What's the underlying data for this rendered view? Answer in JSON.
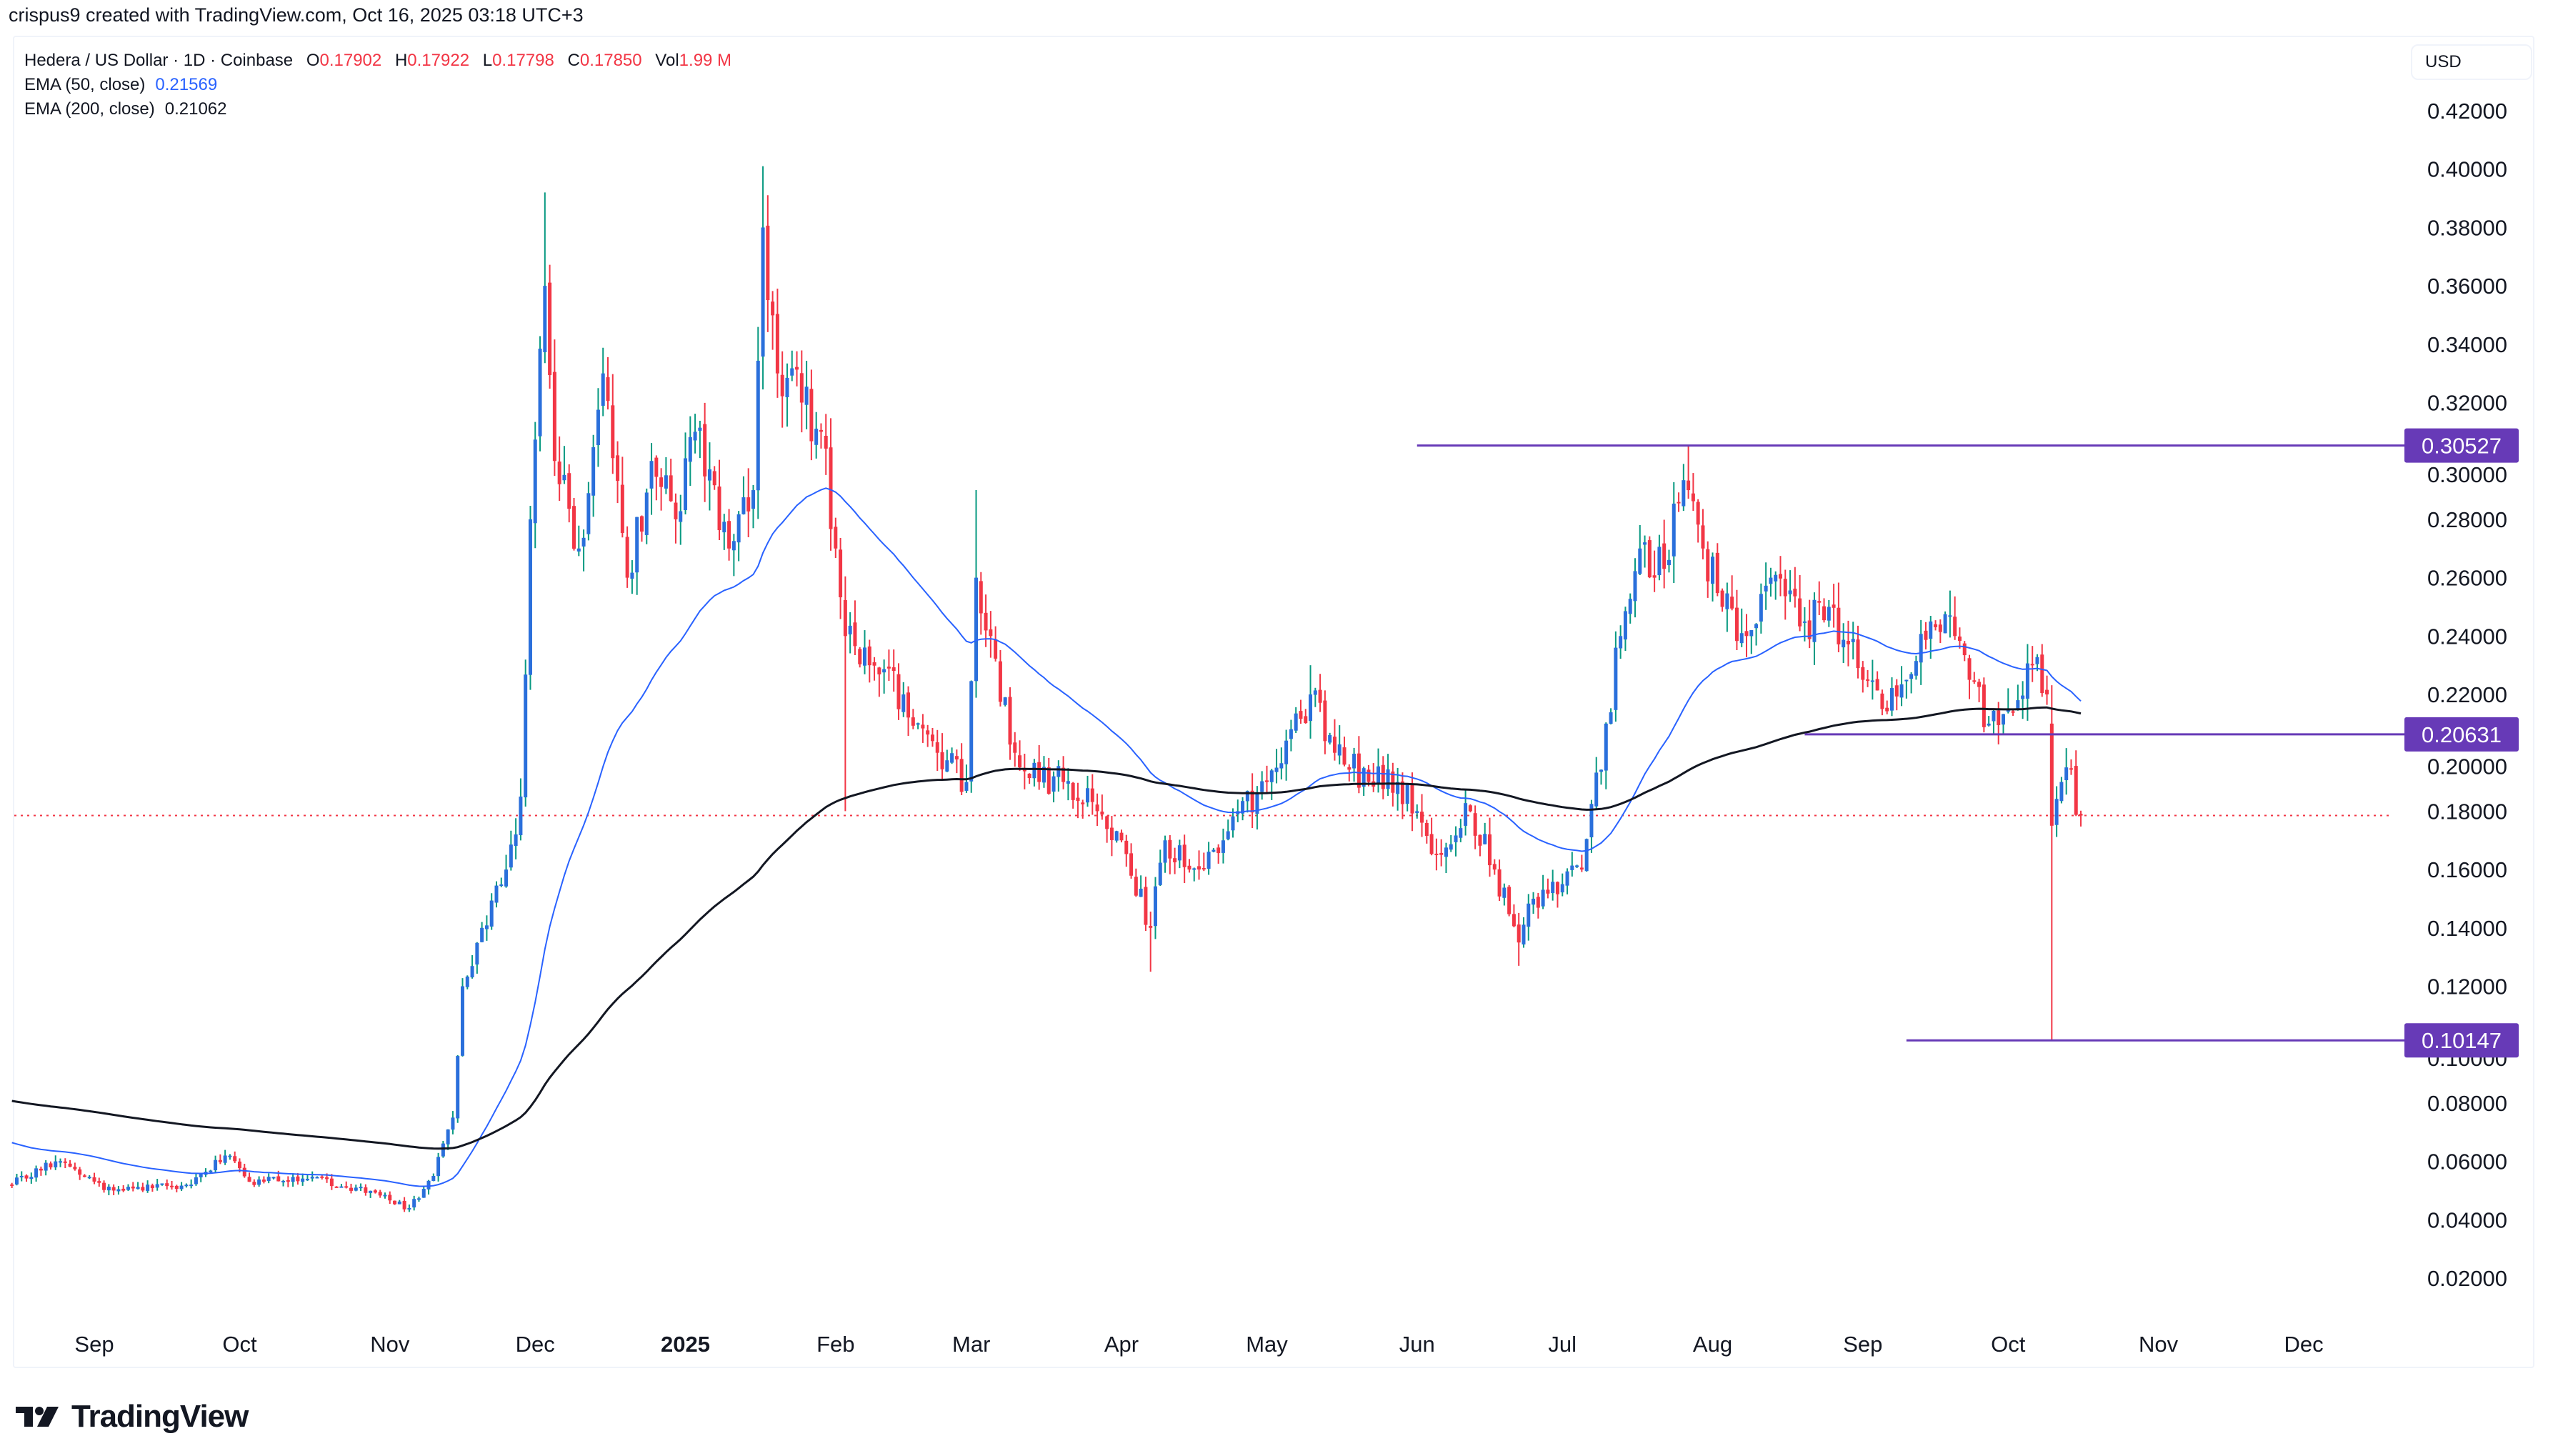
{
  "credit": "crispus9 created with TradingView.com, Oct 16, 2025 03:18 UTC+3",
  "legend": {
    "symbol": "Hedera / US Dollar · 1D · Coinbase",
    "o_label": "O",
    "o": "0.17902",
    "h_label": "H",
    "h": "0.17922",
    "l_label": "L",
    "l": "0.17798",
    "c_label": "C",
    "c": "0.17850",
    "vol_label": "Vol",
    "vol": "1.99 M",
    "ema50_label": "EMA (50, close)",
    "ema50": "0.21569",
    "ema200_label": "EMA (200, close)",
    "ema200": "0.21062"
  },
  "currency": "USD",
  "brand": "TradingView",
  "colors": {
    "up_body": "#2a6fdb",
    "up_wick": "#089981",
    "down": "#f23645",
    "ema50": "#2962ff",
    "ema200": "#131722",
    "level": "#673ab7",
    "last": "#f23645"
  },
  "chart_data": {
    "type": "candlestick",
    "title": "Hedera / US Dollar · 1D · Coinbase",
    "ylim": [
      0.0,
      0.43
    ],
    "y_ticks": [
      "0.02000",
      "0.04000",
      "0.06000",
      "0.08000",
      "0.10000",
      "0.12000",
      "0.14000",
      "0.16000",
      "0.18000",
      "0.20000",
      "0.22000",
      "0.24000",
      "0.26000",
      "0.28000",
      "0.30000",
      "0.32000",
      "0.34000",
      "0.36000",
      "0.38000",
      "0.40000",
      "0.42000"
    ],
    "x_ticks": [
      {
        "label": "Sep",
        "date": "2024-09-01"
      },
      {
        "label": "Oct",
        "date": "2024-10-01"
      },
      {
        "label": "Nov",
        "date": "2024-11-01"
      },
      {
        "label": "Dec",
        "date": "2024-12-01"
      },
      {
        "label": "2025",
        "date": "2025-01-01",
        "bold": true
      },
      {
        "label": "Feb",
        "date": "2025-02-01"
      },
      {
        "label": "Mar",
        "date": "2025-03-01"
      },
      {
        "label": "Apr",
        "date": "2025-04-01"
      },
      {
        "label": "May",
        "date": "2025-05-01"
      },
      {
        "label": "Jun",
        "date": "2025-06-01"
      },
      {
        "label": "Jul",
        "date": "2025-07-01"
      },
      {
        "label": "Aug",
        "date": "2025-08-01"
      },
      {
        "label": "Sep",
        "date": "2025-09-01"
      },
      {
        "label": "Oct",
        "date": "2025-10-01"
      },
      {
        "label": "Nov",
        "date": "2025-11-01"
      },
      {
        "label": "Dec",
        "date": "2025-12-01"
      }
    ],
    "close_anchors": [
      [
        "2024-08-15",
        0.052
      ],
      [
        "2024-08-24",
        0.06
      ],
      [
        "2024-09-05",
        0.05
      ],
      [
        "2024-09-20",
        0.052
      ],
      [
        "2024-09-28",
        0.062
      ],
      [
        "2024-10-03",
        0.053
      ],
      [
        "2024-10-15",
        0.054
      ],
      [
        "2024-10-25",
        0.051
      ],
      [
        "2024-11-05",
        0.044
      ],
      [
        "2024-11-10",
        0.055
      ],
      [
        "2024-11-14",
        0.075
      ],
      [
        "2024-11-16",
        0.12
      ],
      [
        "2024-11-20",
        0.14
      ],
      [
        "2024-11-25",
        0.16
      ],
      [
        "2024-11-28",
        0.185
      ],
      [
        "2024-11-30",
        0.28
      ],
      [
        "2024-12-03",
        0.36
      ],
      [
        "2024-12-05",
        0.3
      ],
      [
        "2024-12-10",
        0.27
      ],
      [
        "2024-12-15",
        0.33
      ],
      [
        "2024-12-20",
        0.26
      ],
      [
        "2024-12-25",
        0.3
      ],
      [
        "2024-12-30",
        0.28
      ],
      [
        "2025-01-03",
        0.31
      ],
      [
        "2025-01-10",
        0.27
      ],
      [
        "2025-01-15",
        0.29
      ],
      [
        "2025-01-17",
        0.38
      ],
      [
        "2025-01-20",
        0.33
      ],
      [
        "2025-01-25",
        0.32
      ],
      [
        "2025-01-29",
        0.31
      ],
      [
        "2025-02-01",
        0.27
      ],
      [
        "2025-02-03",
        0.24
      ],
      [
        "2025-02-08",
        0.23
      ],
      [
        "2025-02-15",
        0.22
      ],
      [
        "2025-02-22",
        0.2
      ],
      [
        "2025-02-28",
        0.19
      ],
      [
        "2025-03-02",
        0.26
      ],
      [
        "2025-03-05",
        0.24
      ],
      [
        "2025-03-10",
        0.2
      ],
      [
        "2025-03-15",
        0.19
      ],
      [
        "2025-03-20",
        0.19
      ],
      [
        "2025-03-27",
        0.18
      ],
      [
        "2025-04-01",
        0.17
      ],
      [
        "2025-04-07",
        0.14
      ],
      [
        "2025-04-10",
        0.17
      ],
      [
        "2025-04-15",
        0.16
      ],
      [
        "2025-04-22",
        0.17
      ],
      [
        "2025-04-25",
        0.18
      ],
      [
        "2025-05-01",
        0.19
      ],
      [
        "2025-05-10",
        0.22
      ],
      [
        "2025-05-15",
        0.2
      ],
      [
        "2025-05-22",
        0.19
      ],
      [
        "2025-05-28",
        0.19
      ],
      [
        "2025-06-01",
        0.18
      ],
      [
        "2025-06-05",
        0.165
      ],
      [
        "2025-06-12",
        0.18
      ],
      [
        "2025-06-17",
        0.16
      ],
      [
        "2025-06-22",
        0.135
      ],
      [
        "2025-06-25",
        0.15
      ],
      [
        "2025-07-01",
        0.155
      ],
      [
        "2025-07-05",
        0.16
      ],
      [
        "2025-07-10",
        0.21
      ],
      [
        "2025-07-13",
        0.24
      ],
      [
        "2025-07-17",
        0.27
      ],
      [
        "2025-07-20",
        0.26
      ],
      [
        "2025-07-27",
        0.29
      ],
      [
        "2025-07-30",
        0.27
      ],
      [
        "2025-08-03",
        0.25
      ],
      [
        "2025-08-08",
        0.24
      ],
      [
        "2025-08-13",
        0.26
      ],
      [
        "2025-08-20",
        0.245
      ],
      [
        "2025-08-25",
        0.25
      ],
      [
        "2025-09-01",
        0.225
      ],
      [
        "2025-09-05",
        0.215
      ],
      [
        "2025-09-10",
        0.225
      ],
      [
        "2025-09-15",
        0.245
      ],
      [
        "2025-09-20",
        0.24
      ],
      [
        "2025-09-23",
        0.225
      ],
      [
        "2025-09-27",
        0.21
      ],
      [
        "2025-10-01",
        0.215
      ],
      [
        "2025-10-06",
        0.23
      ],
      [
        "2025-10-09",
        0.22
      ],
      [
        "2025-10-10",
        0.175
      ],
      [
        "2025-10-12",
        0.19
      ],
      [
        "2025-10-13",
        0.195
      ],
      [
        "2025-10-16",
        0.1785
      ]
    ],
    "overrides": [
      {
        "date": "2024-12-03",
        "high": 0.392
      },
      {
        "date": "2025-01-17",
        "high": 0.401
      },
      {
        "date": "2025-02-03",
        "low": 0.18
      },
      {
        "date": "2025-03-02",
        "high": 0.29
      },
      {
        "date": "2025-04-07",
        "low": 0.125
      },
      {
        "date": "2025-05-10",
        "high": 0.23
      },
      {
        "date": "2025-06-22",
        "low": 0.127
      },
      {
        "date": "2025-07-27",
        "high": 0.30527
      },
      {
        "date": "2025-10-10",
        "low": 0.10147,
        "open": 0.21
      }
    ],
    "ema_seed": {
      "ema50": 0.067,
      "ema200": 0.081
    },
    "levels": [
      {
        "label": "0.30527",
        "value": 0.30527,
        "from": "2025-06-01"
      },
      {
        "label": "0.20631",
        "value": 0.20631,
        "from": "2025-08-20"
      },
      {
        "label": "0.10147",
        "value": 0.10147,
        "from": "2025-09-10"
      }
    ],
    "last_price": 0.1785
  }
}
